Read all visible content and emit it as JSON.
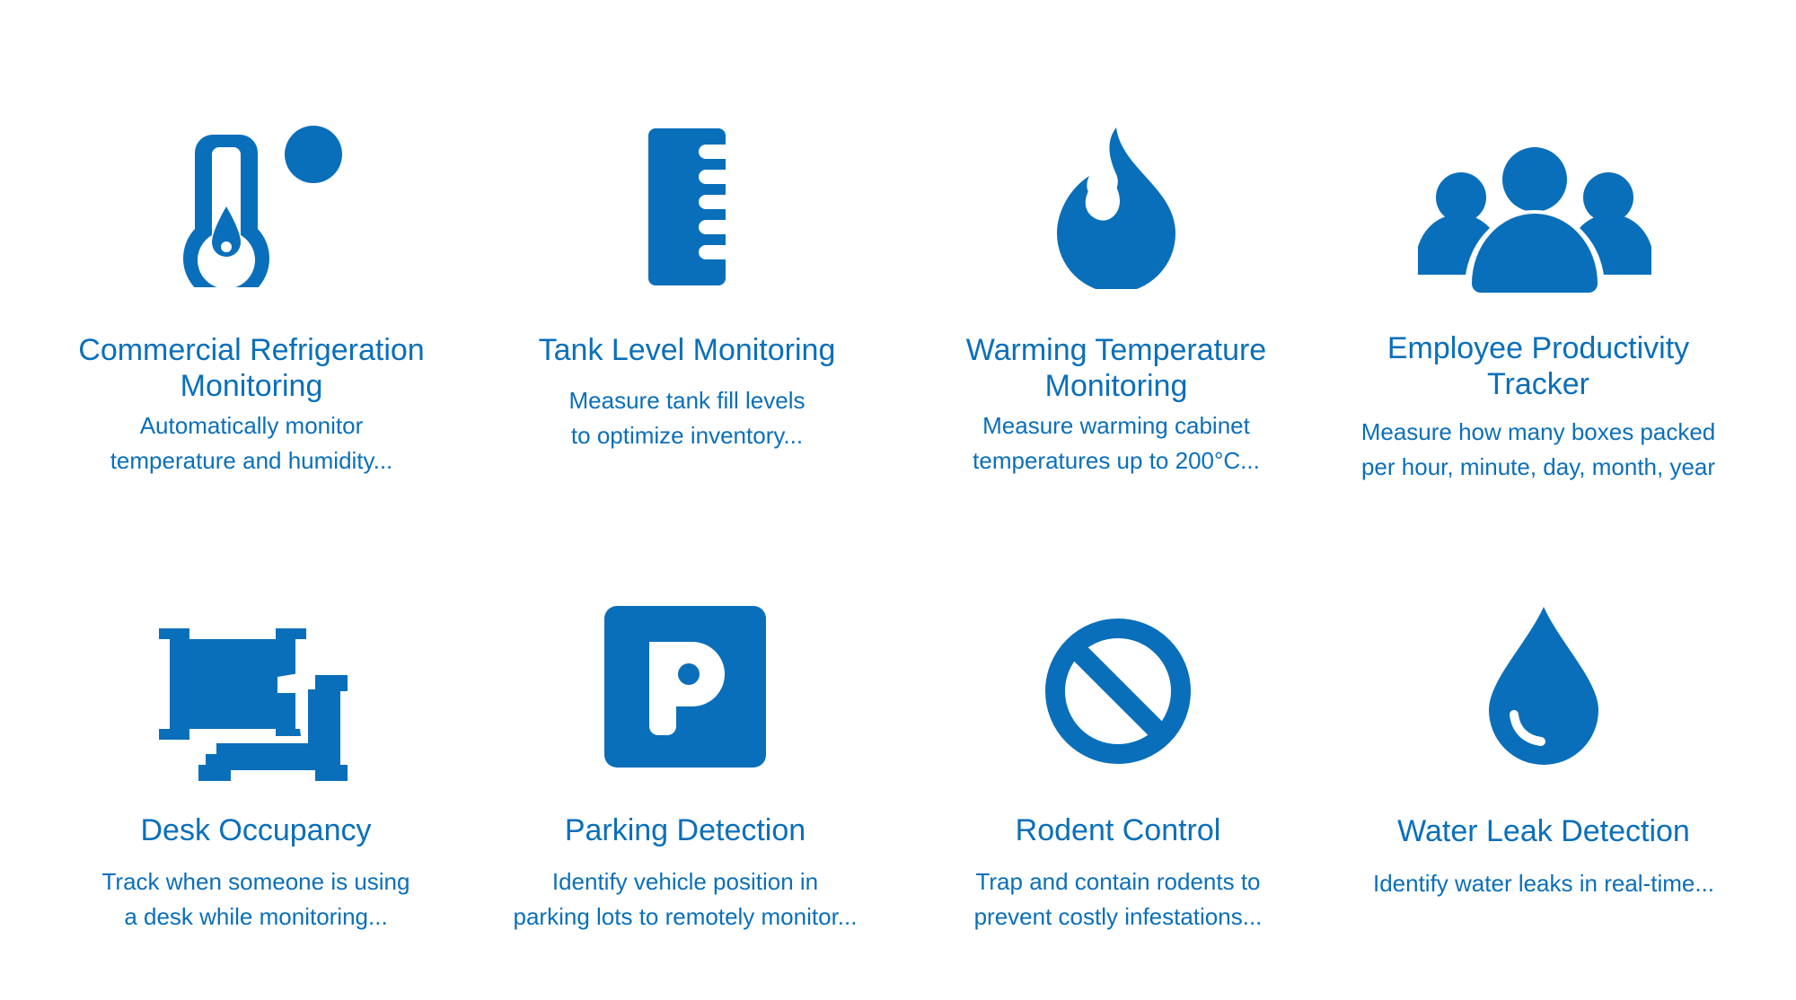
{
  "accent_color": "#0a6fba",
  "cards": [
    {
      "icon": "thermometer-icon",
      "title": "Commercial Refrigeration\nMonitoring",
      "description": "Automatically monitor\ntemperature and humidity..."
    },
    {
      "icon": "ruler-icon",
      "title": "Tank Level Monitoring",
      "description": "Measure tank fill levels\nto optimize inventory..."
    },
    {
      "icon": "flame-icon",
      "title": "Warming Temperature\nMonitoring",
      "description": "Measure warming cabinet\ntemperatures up to 200°C..."
    },
    {
      "icon": "people-group-icon",
      "title": "Employee Productivity\nTracker",
      "description": "Measure how many boxes packed\nper hour, minute, day, month, year"
    },
    {
      "icon": "desk-chairs-icon",
      "title": "Desk Occupancy",
      "description": "Track when someone is using\na desk while monitoring..."
    },
    {
      "icon": "parking-sign-icon",
      "title": "Parking Detection",
      "description": "Identify vehicle position in\nparking lots to remotely monitor..."
    },
    {
      "icon": "prohibited-icon",
      "title": "Rodent Control",
      "description": "Trap and contain rodents to\nprevent costly infestations..."
    },
    {
      "icon": "water-drop-icon",
      "title": "Water Leak Detection",
      "description": "Identify water leaks in real-time..."
    }
  ]
}
